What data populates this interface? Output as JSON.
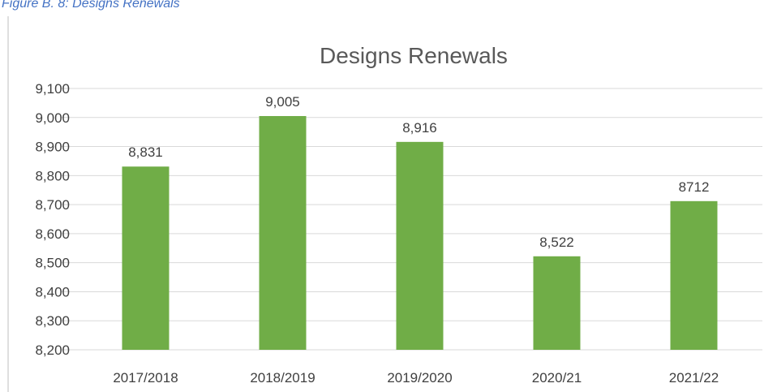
{
  "caption": "Figure B. 8: Designs Renewals",
  "chart_data": {
    "type": "bar",
    "title": "Designs Renewals",
    "categories": [
      "2017/2018",
      "2018/2019",
      "2019/2020",
      "2020/21",
      "2021/22"
    ],
    "values": [
      8831,
      9005,
      8916,
      8522,
      8712
    ],
    "value_labels": [
      "8,831",
      "9,005",
      "8,916",
      "8,522",
      "8712"
    ],
    "color": "#70ad47",
    "ylim": [
      8200,
      9100
    ],
    "yticks": [
      {
        "value": 8200,
        "label": "8,200"
      },
      {
        "value": 8300,
        "label": "8,300"
      },
      {
        "value": 8400,
        "label": "8,400"
      },
      {
        "value": 8500,
        "label": "8,500"
      },
      {
        "value": 8600,
        "label": "8,600"
      },
      {
        "value": 8700,
        "label": "8,700"
      },
      {
        "value": 8800,
        "label": "8,800"
      },
      {
        "value": 8900,
        "label": "8,900"
      },
      {
        "value": 9000,
        "label": "9,000"
      },
      {
        "value": 9100,
        "label": "9,100"
      }
    ],
    "grid": true
  }
}
